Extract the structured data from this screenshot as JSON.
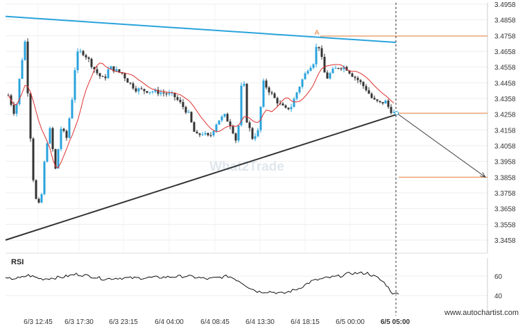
{
  "chart_data": {
    "type": "candlestick",
    "watermark": "What2Trade",
    "footer": "www.autochartist.com",
    "rsi_label": "RSI",
    "y_ticks": [
      "3.4958",
      "3.4858",
      "3.4758",
      "3.4658",
      "3.4558",
      "3.4458",
      "3.4358",
      "3.4258",
      "3.4158",
      "3.4058",
      "3.3958",
      "3.3858",
      "3.3758",
      "3.3658",
      "3.3558",
      "3.3458"
    ],
    "y_range": [
      3.3458,
      3.4958
    ],
    "x_ticks": [
      "6/3 12:45",
      "6/3 17:30",
      "6/3 23:15",
      "6/4 04:00",
      "6/4 08:45",
      "6/4 13:30",
      "6/4 18:15",
      "6/5 00:00",
      "6/5 05:00"
    ],
    "rsi_ticks": [
      "60",
      "40"
    ],
    "rsi_range": [
      30,
      70
    ],
    "pattern": {
      "type": "triangle",
      "point_label": "A",
      "resistance": [
        [
          "start",
          3.488
        ],
        [
          "6/5 05:00",
          3.4715
        ]
      ],
      "support": [
        [
          "start",
          3.3458
        ],
        [
          "6/5 05:00",
          3.4255
        ]
      ],
      "breakout_level": 3.4265,
      "target_level": 3.3858,
      "point_a_level": 3.4755,
      "forecast_end": 3.3858
    },
    "moving_average_color": "#e03030",
    "resistance_color": "#29a3dc",
    "support_color": "#333333",
    "level_color": "#e8803a",
    "candle_colors": {
      "bull": "#29a3dc",
      "bear": "#333333"
    }
  }
}
